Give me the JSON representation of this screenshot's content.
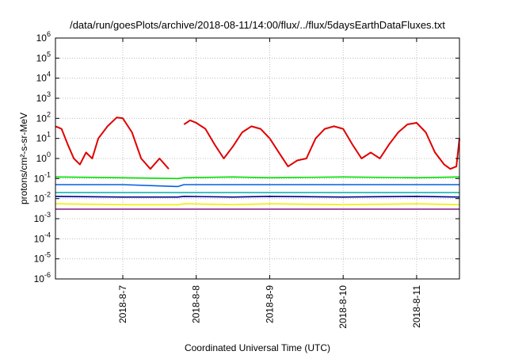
{
  "chart_data": {
    "type": "line",
    "title": "/data/run/goesPlots/archive/2018-08-11/14:00/flux/../flux/5daysEarthDataFluxes.txt",
    "xlabel": "Coordinated Universal Time (UTC)",
    "ylabel": "protons/cm²-s-sr-MeV",
    "yscale": "log",
    "ylim": [
      1e-06,
      1000000.0
    ],
    "xlim": [
      "2018-08-06 02:00",
      "2018-08-11 14:00"
    ],
    "grid": true,
    "x_ticks": [
      {
        "label": "2018-8-7",
        "at": "2018-08-07 00:00"
      },
      {
        "label": "2018-8-8",
        "at": "2018-08-08 00:00"
      },
      {
        "label": "2018-8-9",
        "at": "2018-08-09 00:00"
      },
      {
        "label": "2018-8-10",
        "at": "2018-08-10 00:00"
      },
      {
        "label": "2018-8-11",
        "at": "2018-08-11 00:00"
      }
    ],
    "y_ticks": [
      {
        "base": "10",
        "exp": "6",
        "value": 1000000.0
      },
      {
        "base": "10",
        "exp": "5",
        "value": 100000.0
      },
      {
        "base": "10",
        "exp": "4",
        "value": 10000.0
      },
      {
        "base": "10",
        "exp": "3",
        "value": 1000.0
      },
      {
        "base": "10",
        "exp": "2",
        "value": 100.0
      },
      {
        "base": "10",
        "exp": "1",
        "value": 10.0
      },
      {
        "base": "10",
        "exp": "0",
        "value": 1.0
      },
      {
        "base": "10",
        "exp": "-1",
        "value": 0.1
      },
      {
        "base": "10",
        "exp": "-2",
        "value": 0.01
      },
      {
        "base": "10",
        "exp": "-3",
        "value": 0.001
      },
      {
        "base": "10",
        "exp": "-4",
        "value": 0.0001
      },
      {
        "base": "10",
        "exp": "-5",
        "value": 1e-05
      },
      {
        "base": "10",
        "exp": "-6",
        "value": 1e-06
      }
    ],
    "series": [
      {
        "color": "#e00000",
        "x": [
          "2018-08-06 02:00",
          "2018-08-06 04:00",
          "2018-08-06 06:00",
          "2018-08-06 08:00",
          "2018-08-06 10:00",
          "2018-08-06 12:00",
          "2018-08-06 14:00",
          "2018-08-06 16:00",
          "2018-08-06 19:00",
          "2018-08-06 22:00",
          "2018-08-07 00:00",
          "2018-08-07 03:00",
          "2018-08-07 06:00",
          "2018-08-07 09:00",
          "2018-08-07 12:00",
          "2018-08-07 15:00",
          "2018-08-07 18:00",
          "2018-08-07 20:00",
          "2018-08-07 22:00",
          "2018-08-08 00:00",
          "2018-08-08 03:00",
          "2018-08-08 06:00",
          "2018-08-08 09:00",
          "2018-08-08 12:00",
          "2018-08-08 15:00",
          "2018-08-08 18:00",
          "2018-08-08 21:00",
          "2018-08-09 00:00",
          "2018-08-09 03:00",
          "2018-08-09 06:00",
          "2018-08-09 09:00",
          "2018-08-09 12:00",
          "2018-08-09 15:00",
          "2018-08-09 18:00",
          "2018-08-09 21:00",
          "2018-08-10 00:00",
          "2018-08-10 03:00",
          "2018-08-10 06:00",
          "2018-08-10 09:00",
          "2018-08-10 12:00",
          "2018-08-10 15:00",
          "2018-08-10 18:00",
          "2018-08-10 21:00",
          "2018-08-11 00:00",
          "2018-08-11 03:00",
          "2018-08-11 06:00",
          "2018-08-11 09:00",
          "2018-08-11 11:00",
          "2018-08-11 13:00",
          "2018-08-11 14:00"
        ],
        "y": [
          40,
          30,
          5,
          1,
          0.5,
          2,
          1,
          10,
          40,
          110,
          100,
          20,
          1,
          0.3,
          1,
          0.3,
          null,
          50,
          80,
          60,
          30,
          5,
          1,
          4,
          20,
          40,
          30,
          10,
          2,
          0.4,
          0.8,
          1,
          10,
          30,
          40,
          30,
          5,
          1,
          2,
          1,
          5,
          20,
          50,
          60,
          20,
          2,
          0.5,
          0.3,
          0.4,
          10
        ]
      },
      {
        "color": "#00e000",
        "x": [
          "2018-08-06 02:00",
          "2018-08-07 00:00",
          "2018-08-07 18:00",
          "2018-08-07 20:00",
          "2018-08-08 12:00",
          "2018-08-09 00:00",
          "2018-08-10 00:00",
          "2018-08-11 00:00",
          "2018-08-11 14:00"
        ],
        "y": [
          0.12,
          0.11,
          0.1,
          0.11,
          0.12,
          0.11,
          0.12,
          0.11,
          0.12
        ]
      },
      {
        "color": "#0060e0",
        "x": [
          "2018-08-06 02:00",
          "2018-08-07 00:00",
          "2018-08-07 18:00",
          "2018-08-07 20:00",
          "2018-08-08 12:00",
          "2018-08-09 00:00",
          "2018-08-10 00:00",
          "2018-08-11 00:00",
          "2018-08-11 14:00"
        ],
        "y": [
          0.05,
          0.05,
          0.04,
          0.05,
          0.05,
          0.05,
          0.05,
          0.05,
          0.05
        ]
      },
      {
        "color": "#00b0b0",
        "x": [
          "2018-08-06 02:00",
          "2018-08-07 00:00",
          "2018-08-07 18:00",
          "2018-08-07 20:00",
          "2018-08-08 12:00",
          "2018-08-09 00:00",
          "2018-08-10 00:00",
          "2018-08-11 00:00",
          "2018-08-11 14:00"
        ],
        "y": [
          0.02,
          0.02,
          0.02,
          0.02,
          0.02,
          0.02,
          0.02,
          0.02,
          0.02
        ]
      },
      {
        "color": "#00008b",
        "x": [
          "2018-08-06 02:00",
          "2018-08-07 00:00",
          "2018-08-07 18:00",
          "2018-08-07 20:00",
          "2018-08-08 12:00",
          "2018-08-09 00:00",
          "2018-08-10 00:00",
          "2018-08-11 00:00",
          "2018-08-11 14:00"
        ],
        "y": [
          0.013,
          0.012,
          0.012,
          0.013,
          0.012,
          0.013,
          0.012,
          0.013,
          0.012
        ]
      },
      {
        "color": "#f0f000",
        "x": [
          "2018-08-06 02:00",
          "2018-08-07 00:00",
          "2018-08-07 18:00",
          "2018-08-07 20:00",
          "2018-08-08 12:00",
          "2018-08-09 00:00",
          "2018-08-10 00:00",
          "2018-08-11 00:00",
          "2018-08-11 14:00"
        ],
        "y": [
          0.0055,
          0.005,
          0.005,
          0.0055,
          0.005,
          0.0055,
          0.005,
          0.0055,
          0.005
        ]
      },
      {
        "color": "#8b2b8b",
        "x": [
          "2018-08-06 02:00",
          "2018-08-07 00:00",
          "2018-08-07 18:00",
          "2018-08-07 20:00",
          "2018-08-08 12:00",
          "2018-08-09 00:00",
          "2018-08-10 00:00",
          "2018-08-11 00:00",
          "2018-08-11 14:00"
        ],
        "y": [
          0.003,
          0.003,
          0.003,
          0.003,
          0.003,
          0.003,
          0.003,
          0.003,
          0.003
        ]
      }
    ]
  }
}
